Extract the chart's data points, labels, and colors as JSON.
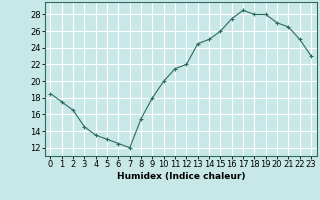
{
  "x": [
    0,
    1,
    2,
    3,
    4,
    5,
    6,
    7,
    8,
    9,
    10,
    11,
    12,
    13,
    14,
    15,
    16,
    17,
    18,
    19,
    20,
    21,
    22,
    23
  ],
  "y": [
    18.5,
    17.5,
    16.5,
    14.5,
    13.5,
    13.0,
    12.5,
    12.0,
    15.5,
    18.0,
    20.0,
    21.5,
    22.0,
    24.5,
    25.0,
    26.0,
    27.5,
    28.5,
    28.0,
    28.0,
    27.0,
    26.5,
    25.0,
    23.0
  ],
  "xlabel": "Humidex (Indice chaleur)",
  "xlim": [
    -0.5,
    23.5
  ],
  "ylim": [
    11,
    29.5
  ],
  "yticks": [
    12,
    14,
    16,
    18,
    20,
    22,
    24,
    26,
    28
  ],
  "xticks": [
    0,
    1,
    2,
    3,
    4,
    5,
    6,
    7,
    8,
    9,
    10,
    11,
    12,
    13,
    14,
    15,
    16,
    17,
    18,
    19,
    20,
    21,
    22,
    23
  ],
  "xtick_labels": [
    "0",
    "1",
    "2",
    "3",
    "4",
    "5",
    "6",
    "7",
    "8",
    "9",
    "10",
    "11",
    "12",
    "13",
    "14",
    "15",
    "16",
    "17",
    "18",
    "19",
    "20",
    "21",
    "22",
    "23"
  ],
  "line_color": "#2e6b5e",
  "marker": "+",
  "bg_color": "#c8e8e8",
  "grid_color": "#ffffff",
  "label_fontsize": 6.5,
  "tick_fontsize": 6.0
}
